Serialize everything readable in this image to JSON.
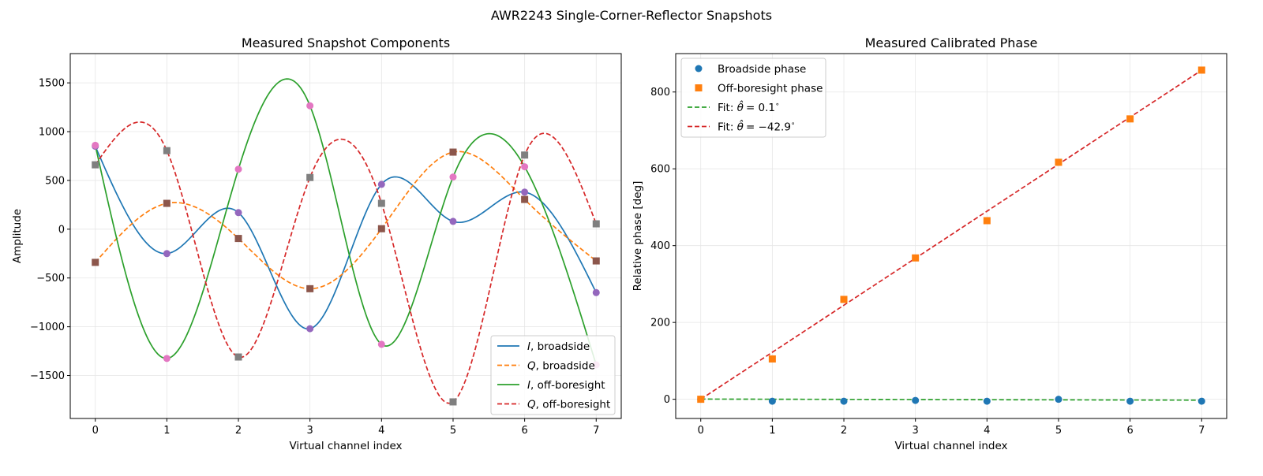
{
  "figure": {
    "suptitle": "AWR2243 Single-Corner-Reflector Snapshots"
  },
  "chart_data": [
    {
      "type": "line",
      "title": "Measured Snapshot Components",
      "xlabel": "Virtual channel index",
      "ylabel": "Amplitude",
      "xlim": [
        -0.35,
        7.35
      ],
      "ylim": [
        -1940,
        1800
      ],
      "xticks": [
        0,
        1,
        2,
        3,
        4,
        5,
        6,
        7
      ],
      "yticks": [
        -1500,
        -1000,
        -500,
        0,
        500,
        1000,
        1500
      ],
      "x": [
        0,
        1,
        2,
        3,
        4,
        5,
        6,
        7
      ],
      "grid": true,
      "legend_position": "lower-right",
      "series": [
        {
          "name": "I, broadside",
          "name_italic": "I",
          "name_rest": ", broadside",
          "color": "#1f77b4",
          "linestyle": "solid",
          "marker": "circle",
          "marker_color": "#9467bd",
          "values": [
            850,
            -250,
            170,
            -1020,
            460,
            80,
            380,
            -650
          ]
        },
        {
          "name": "Q, broadside",
          "name_italic": "Q",
          "name_rest": ", broadside",
          "color": "#ff7f0e",
          "linestyle": "dashed",
          "marker": "square",
          "marker_color": "#8c564b",
          "values": [
            -340,
            265,
            -95,
            -610,
            5,
            790,
            305,
            -325
          ]
        },
        {
          "name": "I, off-boresight",
          "name_italic": "I",
          "name_rest": ", off-boresight",
          "color": "#2ca02c",
          "linestyle": "solid",
          "marker": "circle",
          "marker_color": "#e377c2",
          "values": [
            860,
            -1325,
            615,
            1265,
            -1180,
            535,
            640,
            -1390
          ]
        },
        {
          "name": "Q, off-boresight",
          "name_italic": "Q",
          "name_rest": ", off-boresight",
          "color": "#d62728",
          "linestyle": "dashed",
          "marker": "square",
          "marker_color": "#7f7f7f",
          "values": [
            660,
            805,
            -1310,
            530,
            265,
            -1770,
            760,
            55
          ]
        }
      ]
    },
    {
      "type": "scatter",
      "title": "Measured Calibrated Phase",
      "xlabel": "Virtual channel index",
      "ylabel": "Relative phase [deg]",
      "xlim": [
        -0.35,
        7.35
      ],
      "ylim": [
        -50,
        900
      ],
      "xticks": [
        0,
        1,
        2,
        3,
        4,
        5,
        6,
        7
      ],
      "yticks": [
        0,
        200,
        400,
        600,
        800
      ],
      "x": [
        0,
        1,
        2,
        3,
        4,
        5,
        6,
        7
      ],
      "grid": true,
      "legend_position": "upper-left",
      "series": [
        {
          "name": "Broadside phase",
          "color": "#1f77b4",
          "marker": "circle",
          "kind": "points",
          "values": [
            0,
            -5,
            -5,
            -3,
            -5,
            0,
            -5,
            -5
          ]
        },
        {
          "name": "Off-boresight phase",
          "color": "#ff7f0e",
          "marker": "square",
          "kind": "points",
          "values": [
            0,
            105,
            260,
            368,
            465,
            617,
            730,
            857
          ]
        },
        {
          "name": "Fit: θ̂ = 0.1°",
          "label_prefix": "Fit: ",
          "label_value": "= 0.1",
          "color": "#2ca02c",
          "linestyle": "dashed",
          "kind": "line",
          "values": [
            0.5,
            0.1,
            -0.3,
            -0.7,
            -1.1,
            -1.5,
            -1.9,
            -2.3
          ]
        },
        {
          "name": "Fit: θ̂ = −42.9°",
          "label_prefix": "Fit: ",
          "label_value": "= −42.9",
          "color": "#d62728",
          "linestyle": "dashed",
          "kind": "line",
          "values": [
            0,
            122.4,
            244.8,
            367.2,
            489.6,
            612,
            734.4,
            856.8
          ]
        }
      ]
    }
  ]
}
